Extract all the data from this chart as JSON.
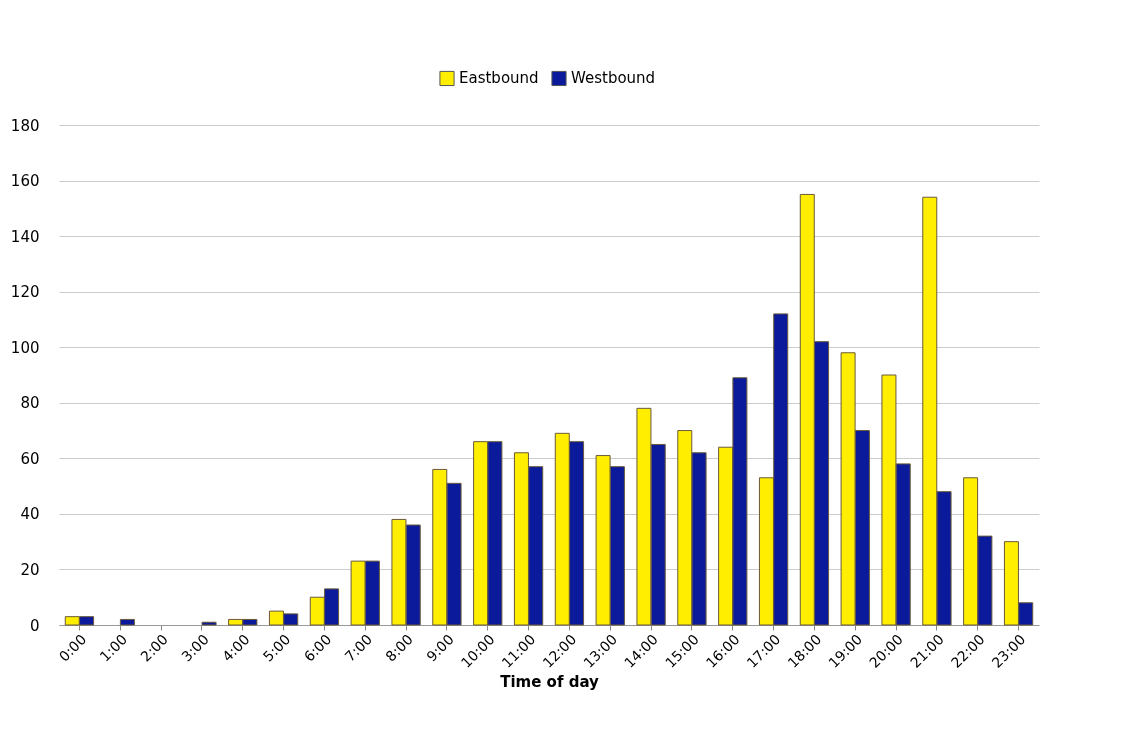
{
  "chart_data": {
    "type": "bar",
    "xlabel": "Time of day",
    "categories": [
      "0:00",
      "1:00",
      "2:00",
      "3:00",
      "4:00",
      "5:00",
      "6:00",
      "7:00",
      "8:00",
      "9:00",
      "10:00",
      "11:00",
      "12:00",
      "13:00",
      "14:00",
      "15:00",
      "16:00",
      "17:00",
      "18:00",
      "19:00",
      "20:00",
      "21:00",
      "22:00",
      "23:00"
    ],
    "series": [
      {
        "name": "Eastbound",
        "color": "#ffee00",
        "values": [
          3,
          null,
          null,
          null,
          2,
          5,
          10,
          23,
          38,
          56,
          66,
          62,
          69,
          61,
          78,
          70,
          64,
          53,
          155,
          98,
          90,
          154,
          53,
          30
        ]
      },
      {
        "name": "Westbound",
        "color": "#0a1a9a",
        "values": [
          3,
          2,
          null,
          1,
          2,
          4,
          13,
          23,
          36,
          51,
          66,
          57,
          66,
          57,
          65,
          62,
          89,
          112,
          102,
          70,
          58,
          48,
          32,
          8
        ]
      }
    ],
    "ylim": [
      0,
      180
    ],
    "yticks": [
      0,
      20,
      40,
      60,
      80,
      100,
      120,
      140,
      160,
      180
    ],
    "grid": "y",
    "legend": "top"
  }
}
